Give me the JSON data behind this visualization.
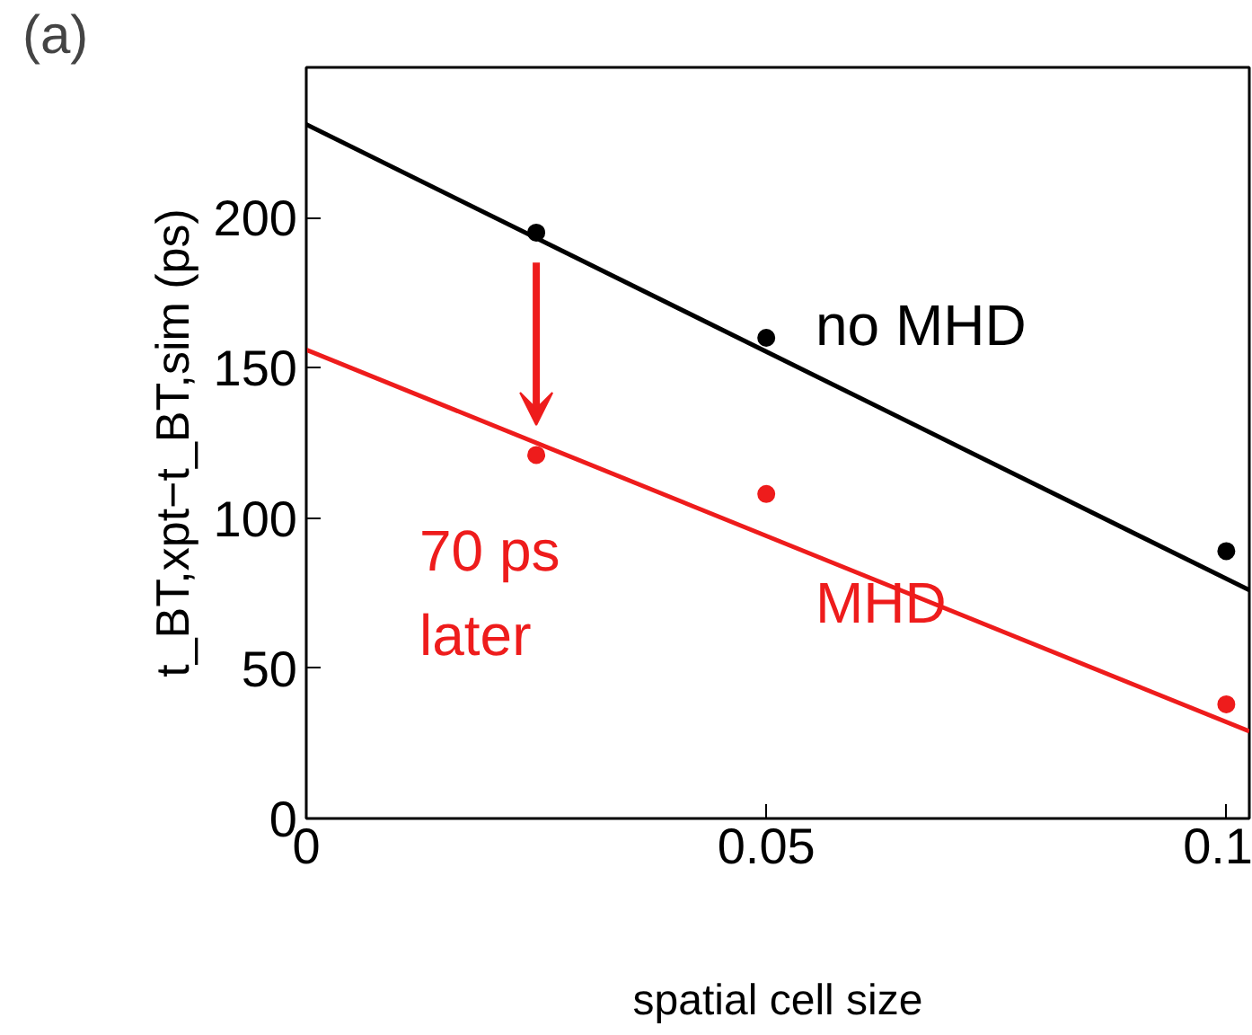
{
  "chart_data": {
    "type": "line",
    "xlabel": "spatial cell size",
    "ylabel": "t_BT,xpt−t_BT,sim (ps)",
    "xlim": [
      0,
      0.1025
    ],
    "xticks": [
      0,
      0.05,
      0.1
    ],
    "ylim": [
      0,
      250
    ],
    "yticks": [
      0,
      50,
      100,
      150,
      200
    ],
    "grid": false,
    "series": [
      {
        "name": "no MHD",
        "color": "#000000",
        "x": [
          0,
          0.1025
        ],
        "values": [
          231,
          76
        ]
      },
      {
        "name": "MHD",
        "color": "#ee1c1c",
        "x": [
          0,
          0.1025
        ],
        "values": [
          156,
          29
        ]
      },
      {
        "type": "scatter",
        "marker": "circle",
        "color": "#000000",
        "x": [
          0.025,
          0.05,
          0.1
        ],
        "values": [
          195,
          160,
          89
        ]
      },
      {
        "type": "scatter",
        "marker": "circle",
        "color": "#ee1c1c",
        "x": [
          0.025,
          0.05,
          0.1
        ],
        "values": [
          121,
          108,
          38
        ]
      }
    ],
    "annotations": [
      "(a)",
      "70 ps\nlater"
    ]
  }
}
